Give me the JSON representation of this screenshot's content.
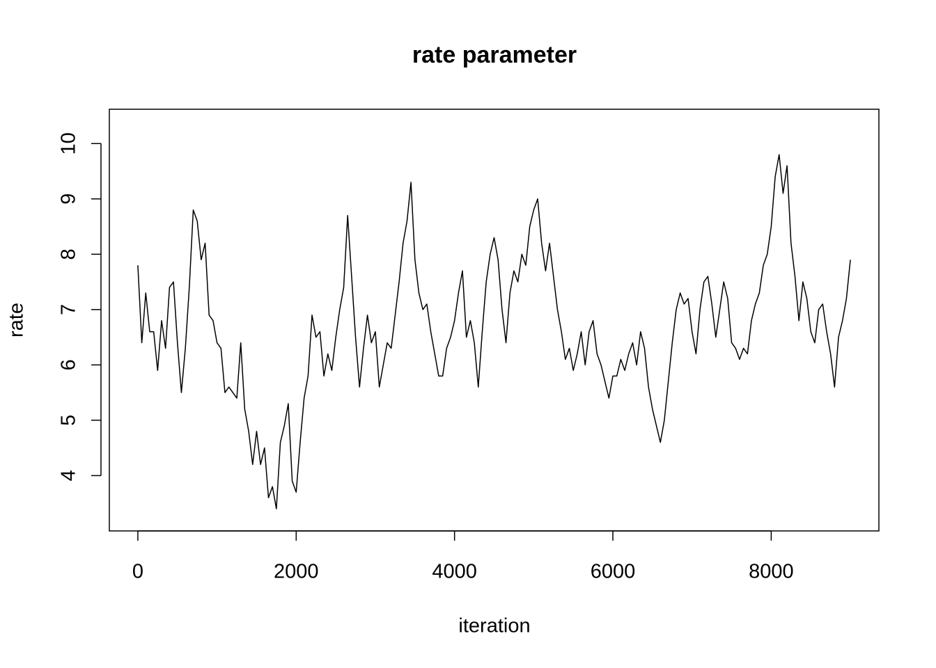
{
  "chart_data": {
    "type": "line",
    "title": "rate parameter",
    "xlabel": "iteration",
    "ylabel": "rate",
    "color": "#000000",
    "x": [
      0,
      50,
      100,
      150,
      200,
      250,
      300,
      350,
      400,
      450,
      500,
      550,
      600,
      650,
      700,
      750,
      800,
      850,
      900,
      950,
      1000,
      1050,
      1100,
      1150,
      1200,
      1250,
      1300,
      1350,
      1400,
      1450,
      1500,
      1550,
      1600,
      1650,
      1700,
      1750,
      1800,
      1850,
      1900,
      1950,
      2000,
      2050,
      2100,
      2150,
      2200,
      2250,
      2300,
      2350,
      2400,
      2450,
      2500,
      2550,
      2600,
      2650,
      2700,
      2750,
      2800,
      2850,
      2900,
      2950,
      3000,
      3050,
      3100,
      3150,
      3200,
      3250,
      3300,
      3350,
      3400,
      3450,
      3500,
      3550,
      3600,
      3650,
      3700,
      3750,
      3800,
      3850,
      3900,
      3950,
      4000,
      4050,
      4100,
      4150,
      4200,
      4250,
      4300,
      4350,
      4400,
      4450,
      4500,
      4550,
      4600,
      4650,
      4700,
      4750,
      4800,
      4850,
      4900,
      4950,
      5000,
      5050,
      5100,
      5150,
      5200,
      5250,
      5300,
      5350,
      5400,
      5450,
      5500,
      5550,
      5600,
      5650,
      5700,
      5750,
      5800,
      5850,
      5900,
      5950,
      6000,
      6050,
      6100,
      6150,
      6200,
      6250,
      6300,
      6350,
      6400,
      6450,
      6500,
      6550,
      6600,
      6650,
      6700,
      6750,
      6800,
      6850,
      6900,
      6950,
      7000,
      7050,
      7100,
      7150,
      7200,
      7250,
      7300,
      7350,
      7400,
      7450,
      7500,
      7550,
      7600,
      7650,
      7700,
      7750,
      7800,
      7850,
      7900,
      7950,
      8000,
      8050,
      8100,
      8150,
      8200,
      8250,
      8300,
      8350,
      8400,
      8450,
      8500,
      8550,
      8600,
      8650,
      8700,
      8750,
      8800,
      8850,
      8900,
      8950,
      9000
    ],
    "values": [
      7.8,
      6.4,
      7.3,
      6.6,
      6.6,
      5.9,
      6.8,
      6.3,
      7.4,
      7.5,
      6.4,
      5.5,
      6.3,
      7.4,
      8.8,
      8.6,
      7.9,
      8.2,
      6.9,
      6.8,
      6.4,
      6.3,
      5.5,
      5.6,
      5.5,
      5.4,
      6.4,
      5.2,
      4.8,
      4.2,
      4.8,
      4.2,
      4.5,
      3.6,
      3.8,
      3.4,
      4.6,
      4.9,
      5.3,
      3.9,
      3.7,
      4.6,
      5.4,
      5.8,
      6.9,
      6.5,
      6.6,
      5.8,
      6.2,
      5.9,
      6.5,
      7.0,
      7.4,
      8.7,
      7.6,
      6.5,
      5.6,
      6.3,
      6.9,
      6.4,
      6.6,
      5.6,
      6.0,
      6.4,
      6.3,
      6.9,
      7.5,
      8.2,
      8.6,
      9.3,
      7.9,
      7.3,
      7.0,
      7.1,
      6.6,
      6.2,
      5.8,
      5.8,
      6.3,
      6.5,
      6.8,
      7.3,
      7.7,
      6.5,
      6.8,
      6.4,
      5.6,
      6.6,
      7.5,
      8.0,
      8.3,
      7.9,
      7.0,
      6.4,
      7.3,
      7.7,
      7.5,
      8.0,
      7.8,
      8.5,
      8.8,
      9.0,
      8.2,
      7.7,
      8.2,
      7.6,
      7.0,
      6.6,
      6.1,
      6.3,
      5.9,
      6.2,
      6.6,
      6.0,
      6.6,
      6.8,
      6.2,
      6.0,
      5.7,
      5.4,
      5.8,
      5.8,
      6.1,
      5.9,
      6.2,
      6.4,
      6.0,
      6.6,
      6.3,
      5.6,
      5.2,
      4.9,
      4.6,
      5.0,
      5.7,
      6.4,
      7.0,
      7.3,
      7.1,
      7.2,
      6.6,
      6.2,
      7.0,
      7.5,
      7.6,
      7.1,
      6.5,
      7.0,
      7.5,
      7.2,
      6.4,
      6.3,
      6.1,
      6.3,
      6.2,
      6.8,
      7.1,
      7.3,
      7.8,
      8.0,
      8.5,
      9.4,
      9.8,
      9.1,
      9.6,
      8.2,
      7.6,
      6.8,
      7.5,
      7.2,
      6.6,
      6.4,
      7.0,
      7.1,
      6.6,
      6.2,
      5.6,
      6.5,
      6.8,
      7.2,
      7.9
    ],
    "xlim": [
      -360,
      9360
    ],
    "ylim": [
      3.0,
      10.62
    ],
    "xticks": [
      0,
      2000,
      4000,
      6000,
      8000
    ],
    "yticks": [
      4,
      5,
      6,
      7,
      8,
      9,
      10
    ]
  }
}
